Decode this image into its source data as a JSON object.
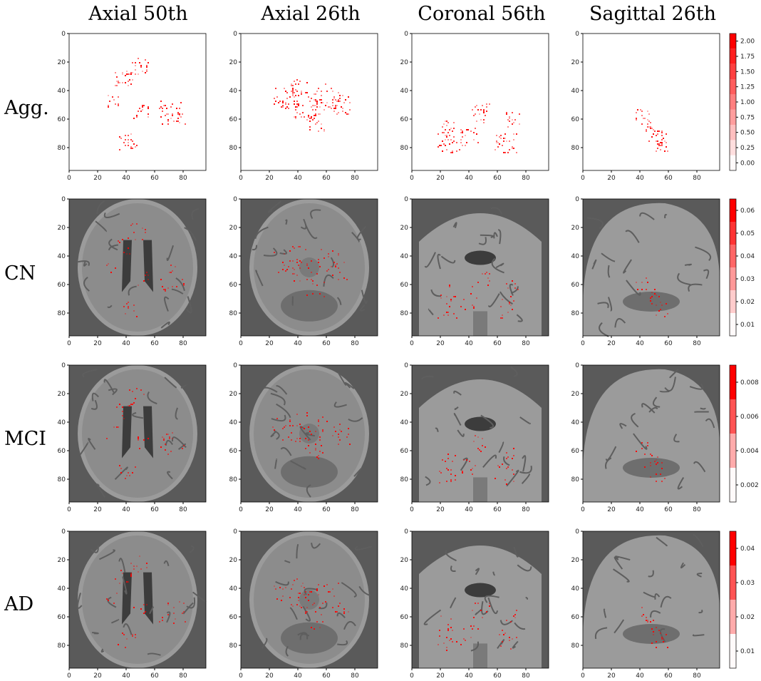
{
  "columns": [
    "Axial 50th",
    "Axial 26th",
    "Coronal 56th",
    "Sagittal 26th"
  ],
  "rows": [
    {
      "label": "Agg.",
      "background": "none",
      "colorbar": {
        "ticks": [
          "2.00",
          "1.75",
          "1.50",
          "1.25",
          "1.00",
          "0.75",
          "0.50",
          "0.25",
          "0.00"
        ]
      }
    },
    {
      "label": "CN",
      "background": "mri",
      "colorbar": {
        "ticks": [
          "0.06",
          "0.05",
          "0.04",
          "0.03",
          "0.02",
          "0.01"
        ]
      }
    },
    {
      "label": "MCI",
      "background": "mri",
      "colorbar": {
        "ticks": [
          "0.008",
          "0.006",
          "0.004",
          "0.002"
        ]
      }
    },
    {
      "label": "AD",
      "background": "mri",
      "colorbar": {
        "ticks": [
          "0.04",
          "0.03",
          "0.02",
          "0.01"
        ]
      }
    }
  ],
  "axes": {
    "x_ticks": [
      "0",
      "20",
      "40",
      "60",
      "80"
    ],
    "y_ticks": [
      "0",
      "20",
      "40",
      "60",
      "80"
    ]
  },
  "colors": {
    "heat_low": "#ffffff",
    "heat_high": "#ff0000",
    "mri_bg": "#8a8a8a",
    "mri_dark": "#4a4a4a"
  }
}
